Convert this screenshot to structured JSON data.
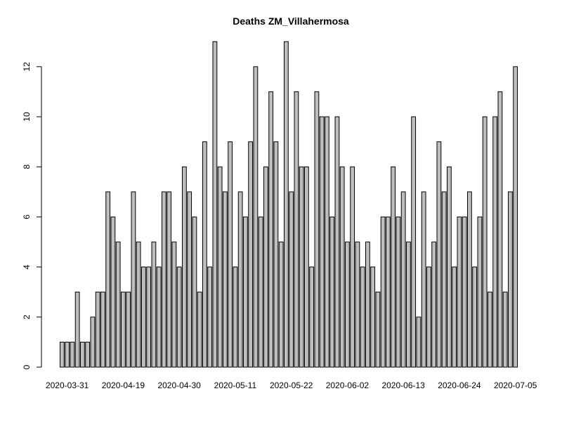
{
  "chart_data": {
    "type": "bar",
    "title": "Deaths ZM_Villahermosa",
    "xlabel": "",
    "ylabel": "",
    "ylim": [
      0,
      13
    ],
    "yticks": [
      0,
      2,
      4,
      6,
      8,
      10,
      12
    ],
    "x_tick_labels": [
      "2020-03-31",
      "2020-04-19",
      "2020-04-30",
      "2020-05-11",
      "2020-05-22",
      "2020-06-02",
      "2020-06-13",
      "2020-06-24",
      "2020-07-05"
    ],
    "x_tick_positions": [
      1,
      12,
      23,
      34,
      45,
      56,
      67,
      78,
      89
    ],
    "values": [
      1,
      1,
      1,
      3,
      1,
      1,
      2,
      3,
      3,
      7,
      6,
      5,
      3,
      3,
      7,
      5,
      4,
      4,
      5,
      4,
      7,
      7,
      5,
      4,
      8,
      7,
      6,
      3,
      9,
      4,
      13,
      8,
      7,
      9,
      4,
      7,
      6,
      9,
      12,
      6,
      8,
      11,
      9,
      5,
      13,
      7,
      11,
      8,
      8,
      4,
      11,
      10,
      10,
      6,
      10,
      8,
      5,
      8,
      5,
      4,
      5,
      4,
      3,
      6,
      6,
      8,
      6,
      7,
      5,
      10,
      2,
      7,
      4,
      5,
      9,
      7,
      8,
      4,
      6,
      6,
      7,
      4,
      6,
      10,
      3,
      10,
      11,
      3,
      7,
      12
    ],
    "bar_color": "#bebebe",
    "border_color": "#000000",
    "grid": false
  }
}
